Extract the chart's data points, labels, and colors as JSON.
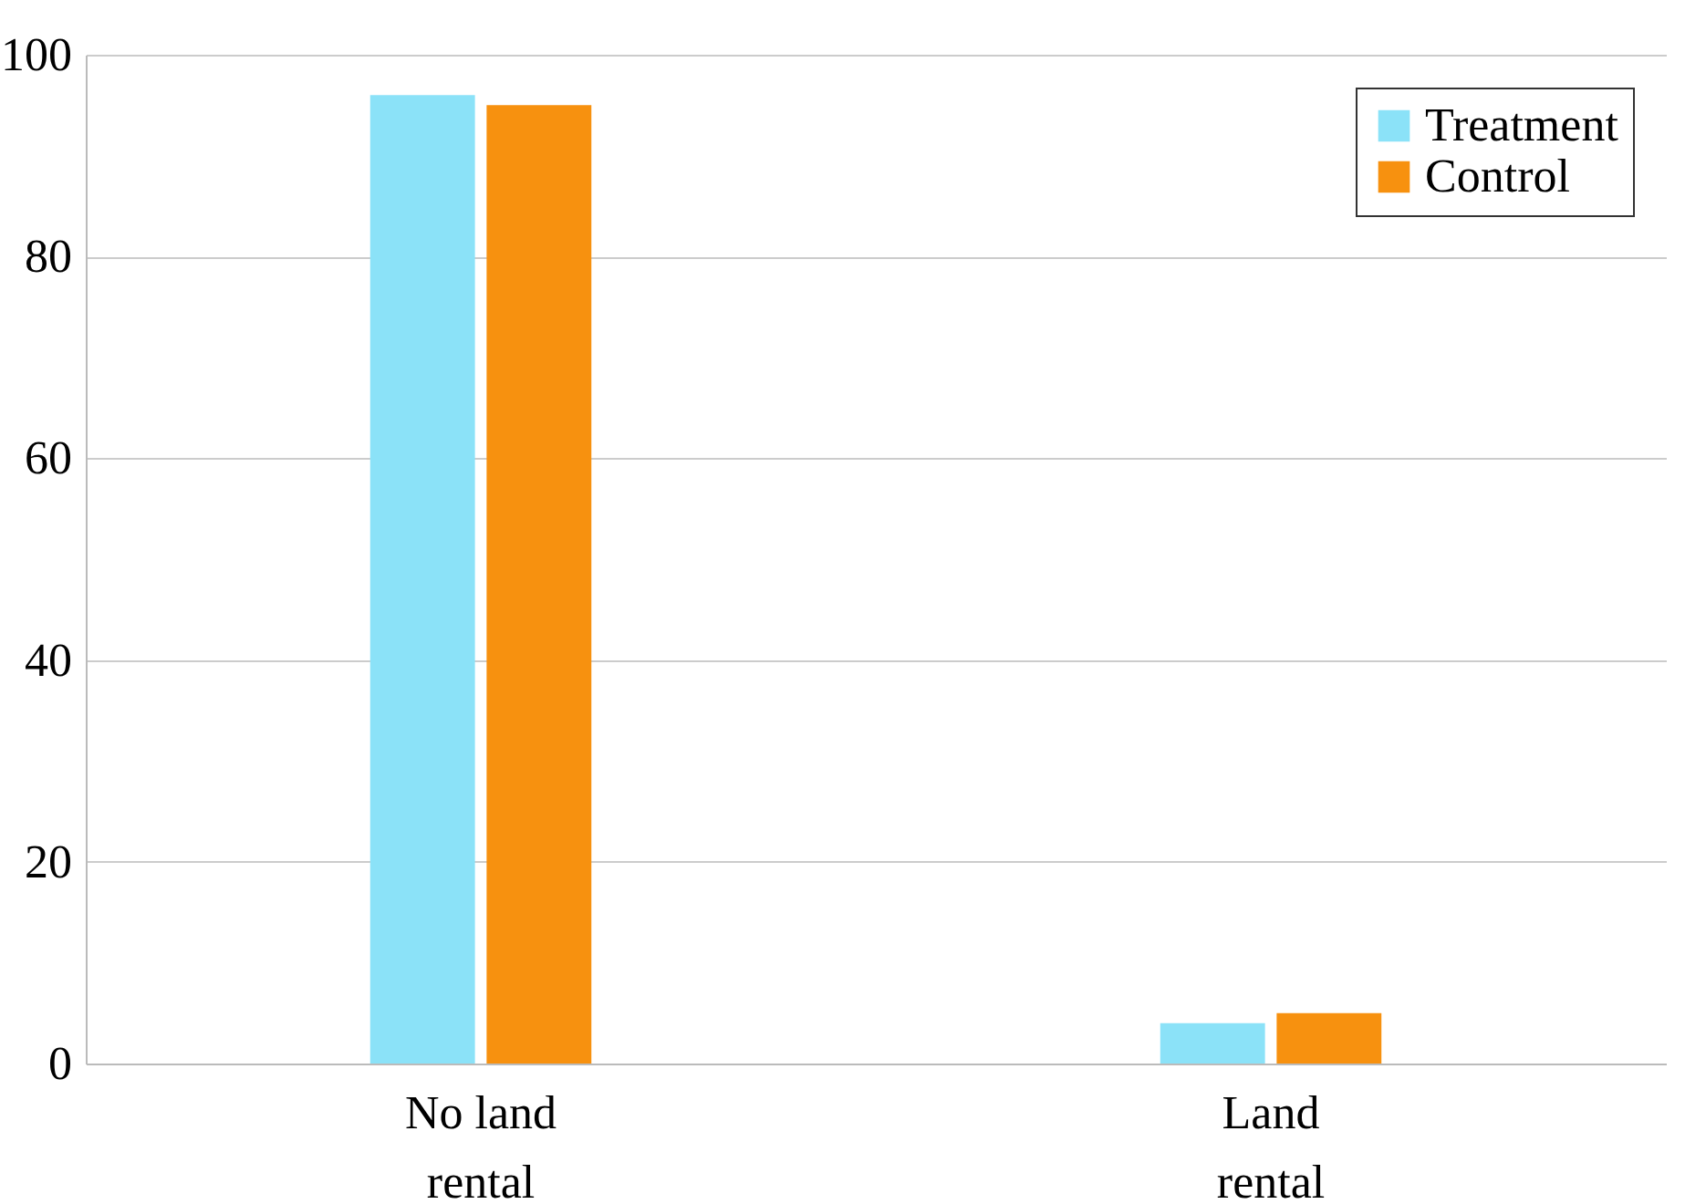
{
  "chart_data": {
    "type": "bar",
    "categories": [
      "No land rental",
      "Land rental"
    ],
    "series": [
      {
        "name": "Treatment",
        "color": "#8be2f8",
        "values": [
          96,
          4
        ]
      },
      {
        "name": "Control",
        "color": "#f7910f",
        "values": [
          95,
          5
        ]
      }
    ],
    "ylim": [
      0,
      100
    ],
    "yticks": [
      0,
      20,
      40,
      60,
      80,
      100
    ],
    "grid": "y",
    "legend": "top right"
  }
}
